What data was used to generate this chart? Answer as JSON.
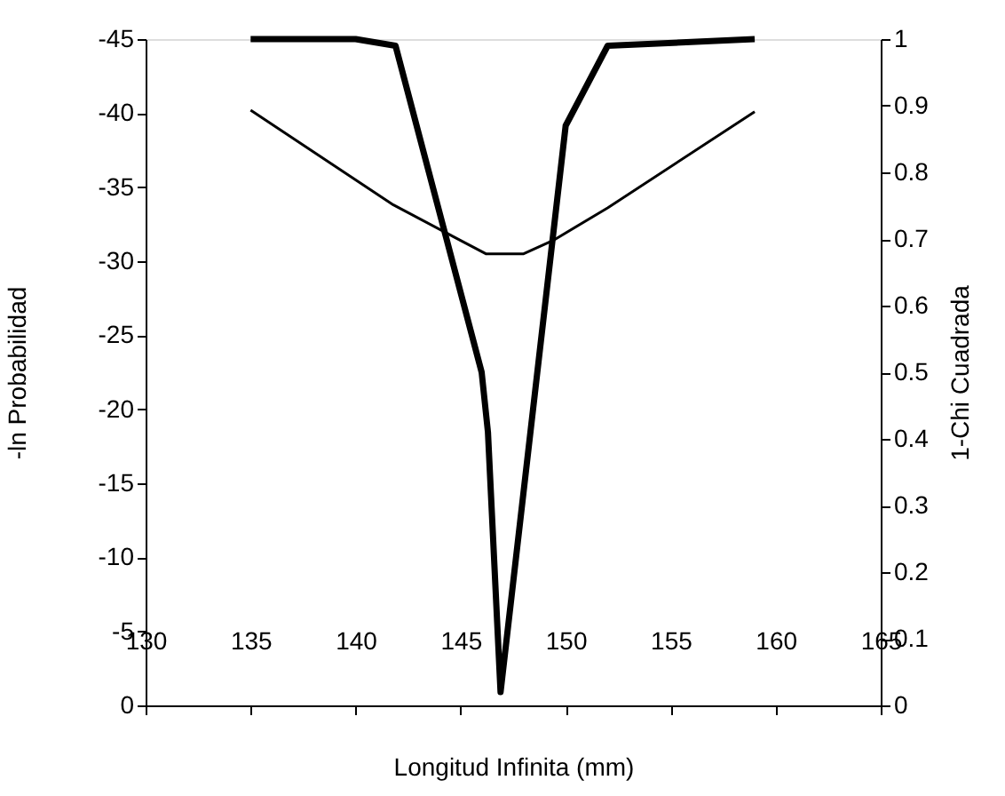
{
  "chart_data": {
    "type": "line",
    "xlabel": "Longitud Infinita (mm)",
    "ylabel": "-ln Probabilidad",
    "y2label": "1-Chi Cuadrada",
    "xlim": [
      130,
      165
    ],
    "xticks": [
      130,
      135,
      140,
      145,
      150,
      155,
      160,
      165
    ],
    "ylim": [
      0,
      -45
    ],
    "yticks": [
      0,
      -5,
      -10,
      -15,
      -20,
      -25,
      -30,
      -35,
      -40,
      -45
    ],
    "y2lim": [
      0,
      1
    ],
    "y2ticks": [
      0,
      0.1,
      0.2,
      0.3,
      0.4,
      0.5,
      0.6,
      0.7,
      0.8,
      0.9,
      1
    ],
    "grid": false,
    "marker": "none",
    "line_style": "solid",
    "series": [
      {
        "color": "#000000",
        "axis": "y",
        "x": [
          135,
          141.8,
          146.2,
          148,
          149.4,
          152,
          159
        ],
        "values": [
          -40.2,
          -33.8,
          -30.5,
          -30.5,
          -31.4,
          -33.6,
          -40.1
        ]
      },
      {
        "color": "#000000",
        "axis": "y2",
        "x": [
          135,
          140,
          141.9,
          146,
          146.3,
          146.9,
          150,
          152,
          159
        ],
        "values": [
          1,
          1,
          0.99,
          0.5,
          0.41,
          0.02,
          0.87,
          0.99,
          1
        ]
      }
    ]
  }
}
